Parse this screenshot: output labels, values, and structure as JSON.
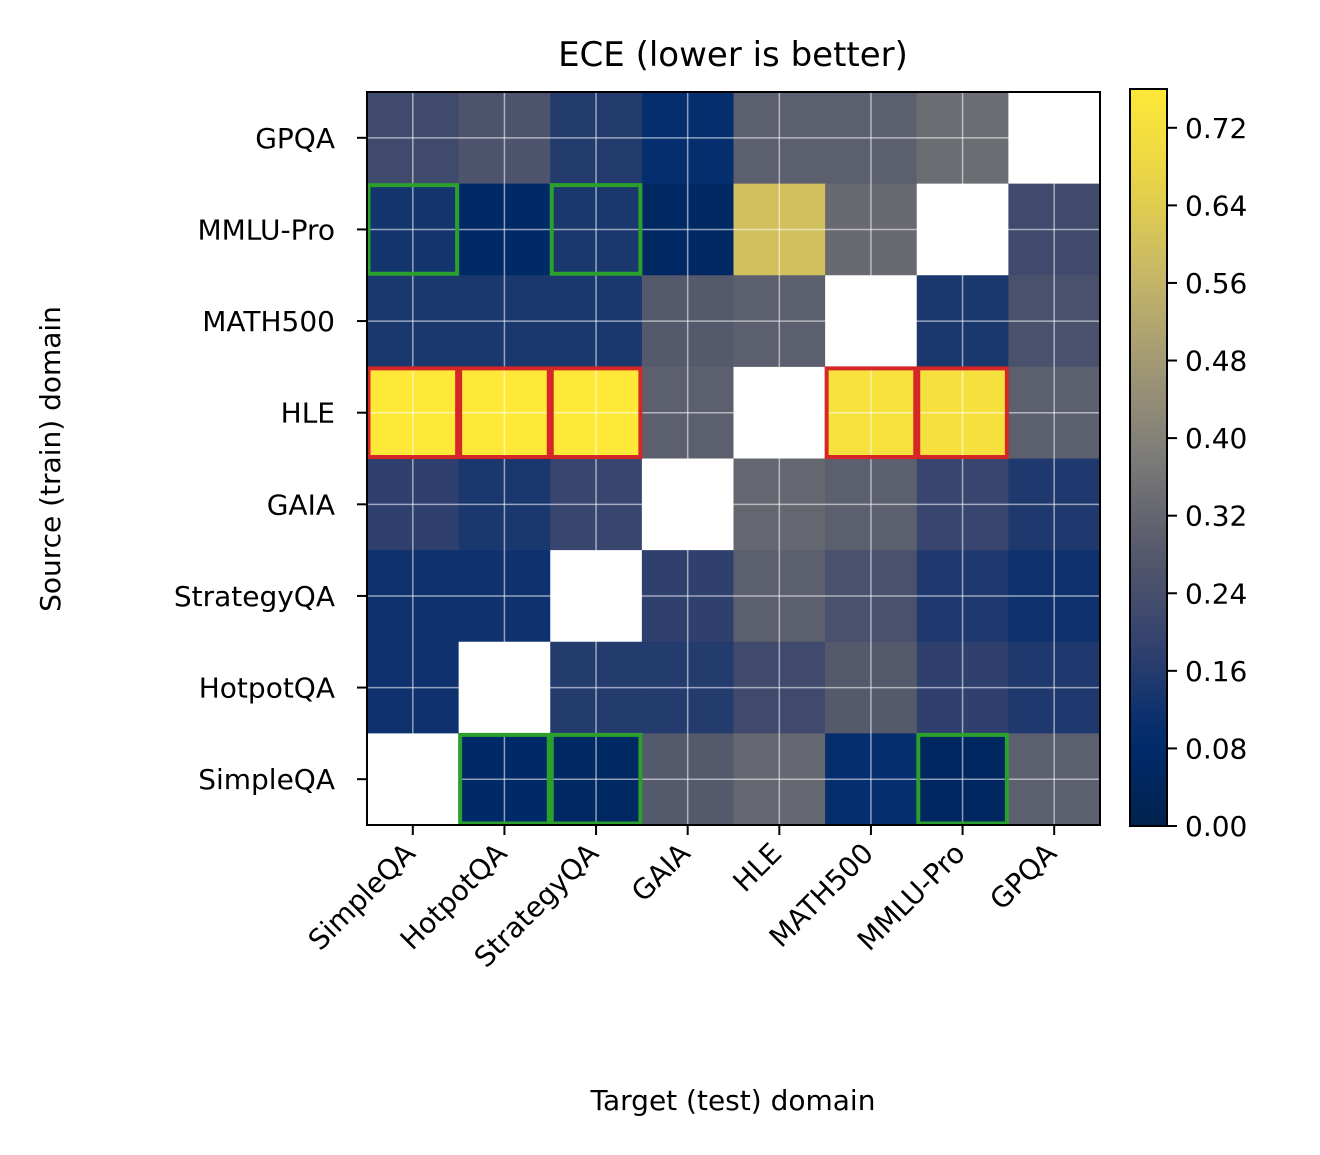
{
  "chart_data": {
    "type": "heatmap",
    "title": "ECE (lower is better)",
    "xlabel": "Target (test) domain",
    "ylabel": "Source (train) domain",
    "x_categories": [
      "SimpleQA",
      "HotpotQA",
      "StrategyQA",
      "GAIA",
      "HLE",
      "MATH500",
      "MMLU-Pro",
      "GPQA"
    ],
    "y_categories": [
      "GPQA",
      "MMLU-Pro",
      "MATH500",
      "HLE",
      "GAIA",
      "StrategyQA",
      "HotpotQA",
      "SimpleQA"
    ],
    "colorbar": {
      "min": 0.0,
      "max": 0.76,
      "ticks": [
        "0.00",
        "0.08",
        "0.16",
        "0.24",
        "0.32",
        "0.40",
        "0.48",
        "0.56",
        "0.64",
        "0.72"
      ],
      "tick_values": [
        0,
        0.08,
        0.16,
        0.24,
        0.32,
        0.4,
        0.48,
        0.56,
        0.64,
        0.72
      ],
      "colormap": "cividis"
    },
    "values": [
      [
        0.22,
        0.26,
        0.16,
        0.1,
        0.3,
        0.3,
        0.34,
        null
      ],
      [
        0.13,
        0.07,
        0.14,
        0.06,
        0.6,
        0.33,
        null,
        0.22
      ],
      [
        0.14,
        0.14,
        0.14,
        0.28,
        0.3,
        null,
        0.14,
        0.25
      ],
      [
        0.8,
        0.77,
        0.76,
        0.3,
        null,
        0.73,
        0.72,
        0.3
      ],
      [
        0.18,
        0.14,
        0.2,
        null,
        0.32,
        0.3,
        0.2,
        0.15
      ],
      [
        0.12,
        0.12,
        null,
        0.18,
        0.3,
        0.25,
        0.15,
        0.12
      ],
      [
        0.12,
        null,
        0.16,
        0.16,
        0.22,
        0.28,
        0.18,
        0.15
      ],
      [
        null,
        0.07,
        0.06,
        0.28,
        0.32,
        0.1,
        0.05,
        0.3
      ]
    ],
    "highlight_red": [
      [
        3,
        0
      ],
      [
        3,
        1
      ],
      [
        3,
        2
      ],
      [
        3,
        5
      ],
      [
        3,
        6
      ]
    ],
    "highlight_green": [
      [
        1,
        0
      ],
      [
        1,
        2
      ],
      [
        7,
        1
      ],
      [
        7,
        2
      ],
      [
        7,
        6
      ]
    ],
    "grid": true
  }
}
